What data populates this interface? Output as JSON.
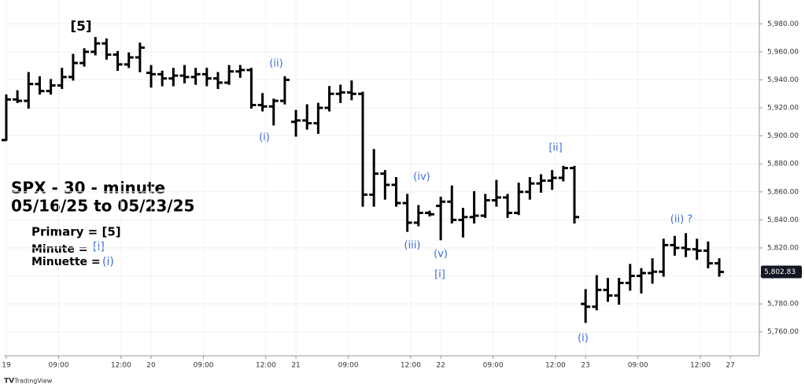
{
  "chart_data": {
    "type": "ohlc",
    "title": "SPX - 30 - minute",
    "subtitle": "05/16/25 to 05/23/25",
    "notes": [
      "Primary = [5]",
      "Minute =",
      "[i]",
      "Minuette =",
      "(i)"
    ],
    "annotations": [
      "[5]",
      "(ii)",
      "(i)",
      "(iv)",
      "(iii)",
      "(v)",
      "[i]",
      "[ii]",
      "(ii) ?",
      "(i)"
    ],
    "source": "TradingView",
    "color": "#000000",
    "annotation_color": "#3a6fd8",
    "grid": true,
    "xlim": [
      -0.21,
      67.6
    ],
    "xticks": [
      {
        "value": 0,
        "label": "19"
      },
      {
        "value": 4.7,
        "label": "09:00"
      },
      {
        "value": 10.3,
        "label": "12:00"
      },
      {
        "value": 13,
        "label": "20"
      },
      {
        "value": 17.7,
        "label": "09:00"
      },
      {
        "value": 23.3,
        "label": "12:00"
      },
      {
        "value": 26,
        "label": "21"
      },
      {
        "value": 30.7,
        "label": "09:00"
      },
      {
        "value": 36.3,
        "label": "12:00"
      },
      {
        "value": 39,
        "label": "22"
      },
      {
        "value": 43.7,
        "label": "09:00"
      },
      {
        "value": 49.3,
        "label": "12:00"
      },
      {
        "value": 52,
        "label": "23"
      },
      {
        "value": 56.7,
        "label": "09:00"
      },
      {
        "value": 62.3,
        "label": "12:00"
      },
      {
        "value": 65,
        "label": "27"
      }
    ],
    "ylim": [
      5743,
      5997
    ],
    "yticks": [
      {
        "value": 5760,
        "label": "5,760.00"
      },
      {
        "value": 5780,
        "label": "5,780.00"
      },
      {
        "value": 5800,
        "label": "5,800.00"
      },
      {
        "value": 5820,
        "label": "5,820.00"
      },
      {
        "value": 5840,
        "label": "5,840.00"
      },
      {
        "value": 5860,
        "label": "5,860.00"
      },
      {
        "value": 5880,
        "label": "5,880.00"
      },
      {
        "value": 5900,
        "label": "5,900.00"
      },
      {
        "value": 5920,
        "label": "5,920.00"
      },
      {
        "value": 5940,
        "label": "5,940.00"
      },
      {
        "value": 5960,
        "label": "5,960.00"
      },
      {
        "value": 5980,
        "label": "5,980.00"
      }
    ],
    "last_price": {
      "value": 5802.83,
      "label": "5,802.83"
    },
    "open": [
      5897,
      5926,
      5925,
      5937,
      5932,
      5936,
      5942,
      5952,
      5960,
      5966,
      5958,
      5951,
      5956,
      5945,
      5944,
      5941,
      5943,
      5942,
      5944,
      5941,
      5938,
      5946,
      5947,
      5922,
      5921,
      5925,
      5910,
      5911,
      5909,
      5920,
      5930,
      5931,
      5930,
      5858,
      5873,
      5865,
      5852,
      5838,
      5845,
      5850,
      5853,
      5840,
      5842,
      5843,
      5854,
      5856,
      5845,
      5860,
      5866,
      5868,
      5870,
      5877,
      5780,
      5778,
      5790,
      5786,
      5795,
      5800,
      5802,
      5803,
      5822,
      5820,
      5819,
      5818,
      5809
    ],
    "high": [
      5929,
      5932,
      5945,
      5942,
      5940,
      5948,
      5958,
      5962,
      5970,
      5969,
      5960,
      5959,
      5966,
      5950,
      5946,
      5948,
      5950,
      5948,
      5948,
      5945,
      5950,
      5950,
      5948,
      5930,
      5926,
      5942,
      5918,
      5922,
      5923,
      5935,
      5936,
      5939,
      5931,
      5890,
      5875,
      5870,
      5858,
      5850,
      5846,
      5856,
      5864,
      5848,
      5860,
      5858,
      5868,
      5858,
      5866,
      5870,
      5872,
      5875,
      5878,
      5878,
      5790,
      5800,
      5798,
      5798,
      5808,
      5805,
      5812,
      5826,
      5828,
      5830,
      5826,
      5824,
      5812
    ],
    "low": [
      5897,
      5924,
      5920,
      5930,
      5930,
      5934,
      5940,
      5950,
      5958,
      5955,
      5947,
      5949,
      5946,
      5935,
      5936,
      5936,
      5938,
      5937,
      5936,
      5934,
      5937,
      5942,
      5920,
      5918,
      5908,
      5923,
      5900,
      5905,
      5902,
      5918,
      5924,
      5926,
      5850,
      5850,
      5855,
      5850,
      5832,
      5836,
      5843,
      5826,
      5838,
      5828,
      5838,
      5842,
      5850,
      5842,
      5844,
      5855,
      5860,
      5862,
      5868,
      5838,
      5767,
      5776,
      5782,
      5780,
      5790,
      5788,
      5795,
      5800,
      5815,
      5814,
      5812,
      5806,
      5800
    ],
    "close": [
      5926,
      5925,
      5937,
      5932,
      5936,
      5942,
      5952,
      5960,
      5966,
      5958,
      5951,
      5956,
      5963,
      5944,
      5941,
      5943,
      5942,
      5944,
      5941,
      5938,
      5946,
      5947,
      5922,
      5921,
      5925,
      5940,
      5911,
      5909,
      5920,
      5930,
      5931,
      5930,
      5858,
      5873,
      5865,
      5852,
      5838,
      5845,
      5844,
      5853,
      5840,
      5842,
      5843,
      5854,
      5856,
      5845,
      5860,
      5866,
      5868,
      5870,
      5877,
      5842,
      5778,
      5790,
      5786,
      5795,
      5800,
      5802,
      5803,
      5822,
      5820,
      5819,
      5818,
      5809,
      5802.83
    ]
  }
}
